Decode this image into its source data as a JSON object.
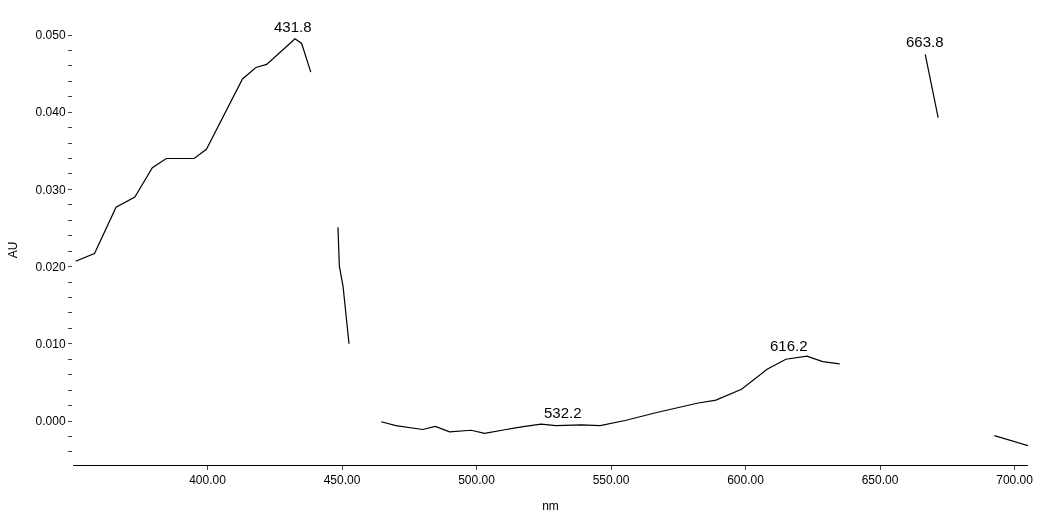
{
  "chart_data": {
    "type": "line",
    "xlabel": "nm",
    "ylabel": "AU",
    "x": [
      351,
      358,
      366,
      373,
      379.5,
      384.7,
      395,
      399.6,
      413,
      418,
      422,
      430.6,
      432.5,
      435,
      438.4,
      443,
      448.5,
      449,
      450.4,
      452.6,
      458,
      464.6,
      470,
      480,
      484.7,
      490,
      498,
      503,
      511,
      518,
      524,
      529.5,
      539,
      546,
      555.6,
      567,
      582,
      589,
      598.5,
      608,
      615,
      622.8,
      628.7,
      635,
      650,
      666.8,
      671.6,
      680,
      692.5,
      705
    ],
    "series": [
      {
        "color": "#000000",
        "values": [
          0.0207,
          0.0217,
          0.0277,
          0.029,
          0.0328,
          0.034,
          0.034,
          0.0352,
          0.0443,
          0.0458,
          0.0462,
          0.0489,
          0.0495,
          0.0489,
          0.0452,
          null,
          0.0251,
          0.0201,
          0.0174,
          0.01,
          null,
          -0.0001,
          -0.0006,
          -0.0011,
          -0.0007,
          -0.0014,
          -0.0012,
          -0.0016,
          -0.0011,
          -0.0007,
          -0.0004,
          -0.0006,
          -0.0005,
          -0.0006,
          0.0001,
          0.0011,
          0.0023,
          0.0027,
          0.0041,
          0.0067,
          0.008,
          0.0084,
          0.0077,
          0.0074,
          null,
          0.0475,
          0.0393,
          null,
          -0.0019,
          -0.0032
        ]
      }
    ],
    "xlim": [
      350,
      705
    ],
    "ylim": [
      -0.0057,
      0.05
    ],
    "xticks": [
      {
        "value": 400,
        "label": "400.00"
      },
      {
        "value": 450,
        "label": "450.00"
      },
      {
        "value": 500,
        "label": "500.00"
      },
      {
        "value": 550,
        "label": "550.00"
      },
      {
        "value": 600,
        "label": "600.00"
      },
      {
        "value": 650,
        "label": "650.00"
      },
      {
        "value": 700,
        "label": "700.00"
      }
    ],
    "yticks": [
      {
        "value": -0.004,
        "label": null
      },
      {
        "value": -0.002,
        "label": null
      },
      {
        "value": 0,
        "label": "0.000"
      },
      {
        "value": 0.002,
        "label": null
      },
      {
        "value": 0.004,
        "label": null
      },
      {
        "value": 0.006,
        "label": null
      },
      {
        "value": 0.008,
        "label": null
      },
      {
        "value": 0.01,
        "label": "0.010"
      },
      {
        "value": 0.012,
        "label": null
      },
      {
        "value": 0.014,
        "label": null
      },
      {
        "value": 0.016,
        "label": null
      },
      {
        "value": 0.018,
        "label": null
      },
      {
        "value": 0.02,
        "label": "0.020"
      },
      {
        "value": 0.022,
        "label": null
      },
      {
        "value": 0.024,
        "label": null
      },
      {
        "value": 0.026,
        "label": null
      },
      {
        "value": 0.028,
        "label": null
      },
      {
        "value": 0.03,
        "label": "0.030"
      },
      {
        "value": 0.032,
        "label": null
      },
      {
        "value": 0.034,
        "label": null
      },
      {
        "value": 0.036,
        "label": null
      },
      {
        "value": 0.038,
        "label": null
      },
      {
        "value": 0.04,
        "label": "0.040"
      },
      {
        "value": 0.042,
        "label": null
      },
      {
        "value": 0.044,
        "label": null
      },
      {
        "value": 0.046,
        "label": null
      },
      {
        "value": 0.048,
        "label": null
      },
      {
        "value": 0.05,
        "label": "0.050"
      }
    ],
    "annotations": [
      {
        "text": "431.8",
        "x": 431.8,
        "y": 0.0495
      },
      {
        "text": "532.2",
        "x": 532.2,
        "y": -0.0005
      },
      {
        "text": "616.2",
        "x": 616.2,
        "y": 0.0082
      },
      {
        "text": "663.8",
        "x": 666.8,
        "y": 0.0475
      }
    ],
    "marker": "none",
    "line_style": "solid"
  }
}
